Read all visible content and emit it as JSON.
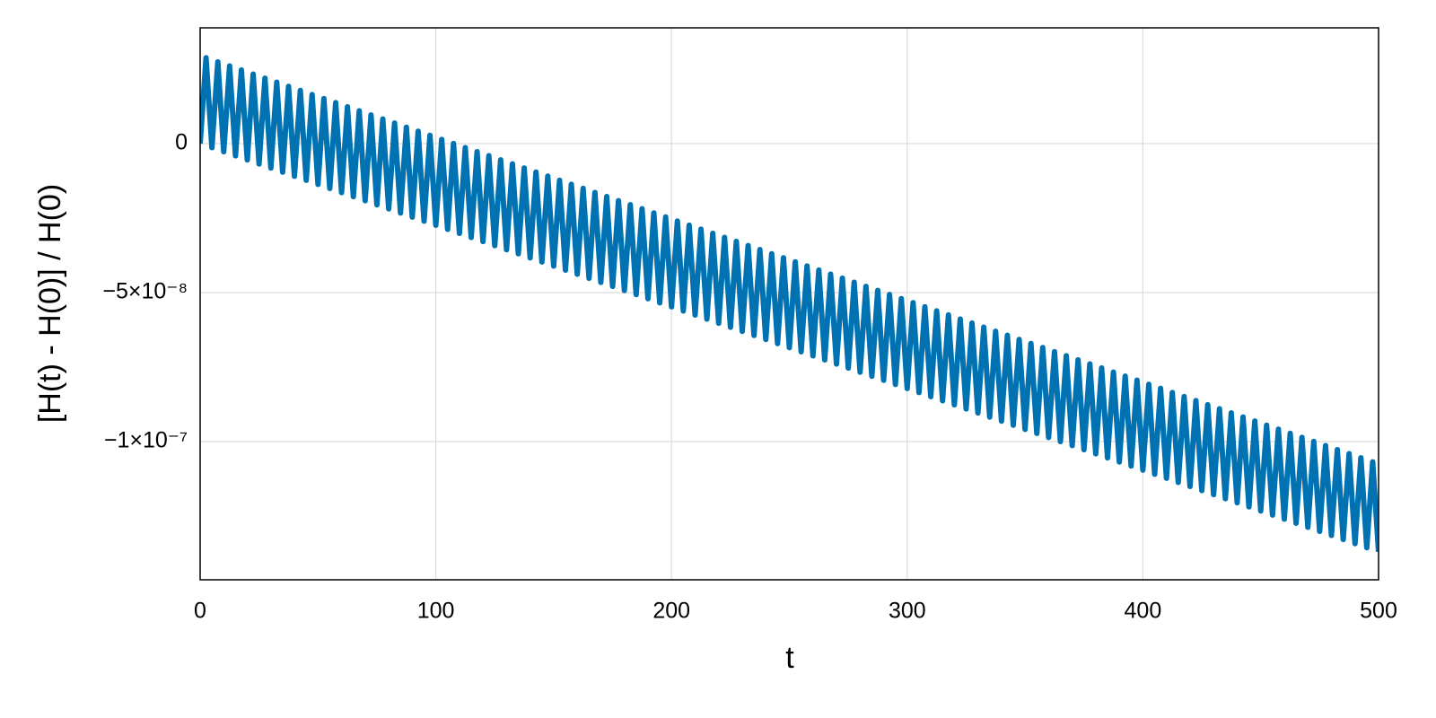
{
  "chart_data": {
    "type": "line",
    "x_label": "t",
    "y_label": "[H(t) - H(0)] / H(0)",
    "xlim": [
      0,
      500
    ],
    "xticks": [
      0,
      100,
      200,
      300,
      400,
      500
    ],
    "ylim": [
      -1.464e-07,
      3.886e-08
    ],
    "yticks": [
      {
        "value": -1e-07,
        "label": "−1×10⁻⁷"
      },
      {
        "value": -5e-08,
        "label": "−5×10⁻⁸"
      },
      0
    ],
    "grid": true,
    "series": [
      {
        "color": "#0072b2",
        "x": [
          0,
          2.5,
          5,
          7.5,
          10,
          12.5,
          15,
          17.5,
          20,
          22.5,
          25,
          27.5,
          30,
          32.5,
          35,
          37.5,
          40,
          42.5,
          45,
          47.5,
          50,
          52.5,
          55,
          57.5,
          60,
          62.5,
          65,
          67.5,
          70,
          72.5,
          75,
          77.5,
          80,
          82.5,
          85,
          87.5,
          90,
          92.5,
          95,
          97.5,
          100,
          102.5,
          105,
          107.5,
          110,
          112.5,
          115,
          117.5,
          120,
          122.5,
          125,
          127.5,
          130,
          132.5,
          135,
          137.5,
          140,
          142.5,
          145,
          147.5,
          150,
          152.5,
          155,
          157.5,
          160,
          162.5,
          165,
          167.5,
          170,
          172.5,
          175,
          177.5,
          180,
          182.5,
          185,
          187.5,
          190,
          192.5,
          195,
          197.5,
          200,
          202.5,
          205,
          207.5,
          210,
          212.5,
          215,
          217.5,
          220,
          222.5,
          225,
          227.5,
          230,
          232.5,
          235,
          237.5,
          240,
          242.5,
          245,
          247.5,
          250,
          252.5,
          255,
          257.5,
          260,
          262.5,
          265,
          267.5,
          270,
          272.5,
          275,
          277.5,
          280,
          282.5,
          285,
          287.5,
          290,
          292.5,
          295,
          297.5,
          300,
          302.5,
          305,
          307.5,
          310,
          312.5,
          315,
          317.5,
          320,
          322.5,
          325,
          327.5,
          330,
          332.5,
          335,
          337.5,
          340,
          342.5,
          345,
          347.5,
          350,
          352.5,
          355,
          357.5,
          360,
          362.5,
          365,
          367.5,
          370,
          372.5,
          375,
          377.5,
          380,
          382.5,
          385,
          387.5,
          390,
          392.5,
          395,
          397.5,
          400,
          402.5,
          405,
          407.5,
          410,
          412.5,
          415,
          417.5,
          420,
          422.5,
          425,
          427.5,
          430,
          432.5,
          435,
          437.5,
          440,
          442.5,
          445,
          447.5,
          450,
          452.5,
          455,
          457.5,
          460,
          462.5,
          465,
          467.5,
          470,
          472.5,
          475,
          477.5,
          480,
          482.5,
          485,
          487.5,
          490,
          492.5,
          495,
          497.5,
          500
        ],
        "values": [
          0,
          2.88e-08,
          -1.37e-09,
          2.743e-08,
          -2.74e-09,
          2.606e-08,
          -4.11e-09,
          2.469e-08,
          -5.48e-09,
          2.332e-08,
          -6.85e-09,
          2.195e-08,
          -8.22e-09,
          2.058e-08,
          -9.59e-09,
          1.921e-08,
          -1.096e-08,
          1.784e-08,
          -1.233e-08,
          1.647e-08,
          -1.37e-08,
          1.51e-08,
          -1.507e-08,
          1.373e-08,
          -1.644e-08,
          1.236e-08,
          -1.781e-08,
          1.099e-08,
          -1.918e-08,
          9.62e-09,
          -2.055e-08,
          8.25e-09,
          -2.192e-08,
          6.88e-09,
          -2.329e-08,
          5.51e-09,
          -2.466e-08,
          4.14e-09,
          -2.603e-08,
          2.77e-09,
          -2.74e-08,
          1.4e-09,
          -2.877e-08,
          3e-11,
          -3.014e-08,
          -1.34e-09,
          -3.151e-08,
          -2.71e-09,
          -3.288e-08,
          -4.08e-09,
          -3.425e-08,
          -5.45e-09,
          -3.562e-08,
          -6.82e-09,
          -3.699e-08,
          -8.19e-09,
          -3.836e-08,
          -9.56e-09,
          -3.973e-08,
          -1.093e-08,
          -4.11e-08,
          -1.23e-08,
          -4.247e-08,
          -1.367e-08,
          -4.384e-08,
          -1.504e-08,
          -4.521e-08,
          -1.641e-08,
          -4.658e-08,
          -1.778e-08,
          -4.795e-08,
          -1.915e-08,
          -4.932e-08,
          -2.052e-08,
          -5.069e-08,
          -2.189e-08,
          -5.206e-08,
          -2.326e-08,
          -5.343e-08,
          -2.463e-08,
          -5.48e-08,
          -2.6e-08,
          -5.617e-08,
          -2.737e-08,
          -5.754e-08,
          -2.874e-08,
          -5.891e-08,
          -3.011e-08,
          -6.028e-08,
          -3.148e-08,
          -6.165e-08,
          -3.285e-08,
          -6.302e-08,
          -3.422e-08,
          -6.439e-08,
          -3.559e-08,
          -6.576e-08,
          -3.696e-08,
          -6.713e-08,
          -3.833e-08,
          -6.85e-08,
          -3.97e-08,
          -6.987e-08,
          -4.107e-08,
          -7.124e-08,
          -4.244e-08,
          -7.261e-08,
          -4.381e-08,
          -7.398e-08,
          -4.518e-08,
          -7.535e-08,
          -4.655e-08,
          -7.672e-08,
          -4.792e-08,
          -7.809e-08,
          -4.929e-08,
          -7.946e-08,
          -5.066e-08,
          -8.083e-08,
          -5.203e-08,
          -8.22e-08,
          -5.34e-08,
          -8.357e-08,
          -5.477e-08,
          -8.494e-08,
          -5.614e-08,
          -8.631e-08,
          -5.751e-08,
          -8.768e-08,
          -5.888e-08,
          -8.905e-08,
          -6.025e-08,
          -9.042e-08,
          -6.162e-08,
          -9.179e-08,
          -6.299e-08,
          -9.316e-08,
          -6.436e-08,
          -9.453e-08,
          -6.573e-08,
          -9.59e-08,
          -6.71e-08,
          -9.727e-08,
          -6.847e-08,
          -9.864e-08,
          -6.984e-08,
          -1.0001e-07,
          -7.121e-08,
          -1.0138e-07,
          -7.258e-08,
          -1.0275e-07,
          -7.395e-08,
          -1.0412e-07,
          -7.532e-08,
          -1.0549e-07,
          -7.669e-08,
          -1.0686e-07,
          -7.806e-08,
          -1.0823e-07,
          -7.943e-08,
          -1.096e-07,
          -8.08e-08,
          -1.1097e-07,
          -8.217e-08,
          -1.1234e-07,
          -8.354e-08,
          -1.1371e-07,
          -8.491e-08,
          -1.1508e-07,
          -8.628e-08,
          -1.1645e-07,
          -8.765e-08,
          -1.1782e-07,
          -8.902e-08,
          -1.1919e-07,
          -9.039e-08,
          -1.2056e-07,
          -9.176e-08,
          -1.2193e-07,
          -9.313e-08,
          -1.233e-07,
          -9.45e-08,
          -1.2467e-07,
          -9.587e-08,
          -1.2604e-07,
          -9.724e-08,
          -1.2741e-07,
          -9.861e-08,
          -1.2878e-07,
          -9.998e-08,
          -1.3015e-07,
          -1.0135e-07,
          -1.3152e-07,
          -1.0272e-07,
          -1.3289e-07,
          -1.0409e-07,
          -1.3426e-07,
          -1.0546e-07,
          -1.3563e-07,
          -1.0683e-07,
          -1.37e-07
        ]
      }
    ]
  }
}
